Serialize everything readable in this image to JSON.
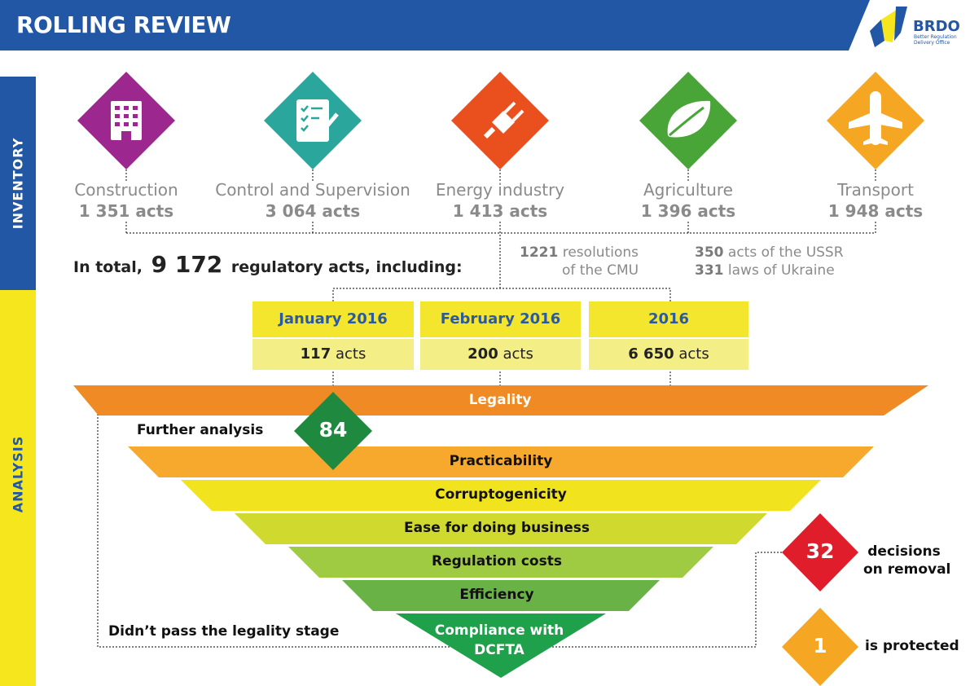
{
  "header": {
    "title": "ROLLING REVIEW",
    "logo_text": "BRDO",
    "logo_sub1": "Better Regulation",
    "logo_sub2": "Delivery Office"
  },
  "sidebar": {
    "inventory": "INVENTORY",
    "analysis": "ANALYSIS"
  },
  "categories": [
    {
      "name": "Construction",
      "count": "1 351 acts",
      "color": "#9b278f",
      "icon": "building-icon"
    },
    {
      "name": "Control and Supervision",
      "count": "3 064 acts",
      "color": "#2aa69c",
      "icon": "checklist-icon"
    },
    {
      "name": "Energy industry",
      "count": "1 413 acts",
      "color": "#e9501e",
      "icon": "plug-icon"
    },
    {
      "name": "Agriculture",
      "count": "1 396 acts",
      "color": "#4aa539",
      "icon": "leaf-icon"
    },
    {
      "name": "Transport",
      "count": "1 948 acts",
      "color": "#f5a623",
      "icon": "plane-icon"
    }
  ],
  "total": {
    "prefix": "In total,",
    "number": "9 172",
    "suffix": "regulatory acts, including:"
  },
  "notes": {
    "cmu_num": "1221",
    "cmu_text1": "resolutions",
    "cmu_text2": "of the CMU",
    "ussr_num": "350",
    "ussr_text": "acts of the USSR",
    "laws_num": "331",
    "laws_text": "laws of Ukraine"
  },
  "periods": [
    {
      "label": "January 2016",
      "num": "117",
      "unit": "acts"
    },
    {
      "label": "February 2016",
      "num": "200",
      "unit": "acts"
    },
    {
      "label": "2016",
      "num": "6 650",
      "unit": "acts"
    }
  ],
  "stages": [
    {
      "label": "Legality",
      "color": "#f08a24"
    },
    {
      "label": "Practicability",
      "color": "#f6a92c"
    },
    {
      "label": "Corruptogenicity",
      "color": "#f2e31f"
    },
    {
      "label": "Ease for doing business",
      "color": "#d0da2e"
    },
    {
      "label": "Regulation costs",
      "color": "#9fcb42"
    },
    {
      "label": "Efficiency",
      "color": "#69b346"
    },
    {
      "label": "Compliance with",
      "label2": "DCFTA",
      "color": "#1fa04a"
    }
  ],
  "further": {
    "label": "Further analysis",
    "value": "84"
  },
  "failed": {
    "label": "Didn’t pass the legality stage"
  },
  "removal": {
    "value": "32",
    "text1": "decisions",
    "text2": "on removal"
  },
  "protected": {
    "value": "1",
    "text": "is protected"
  }
}
